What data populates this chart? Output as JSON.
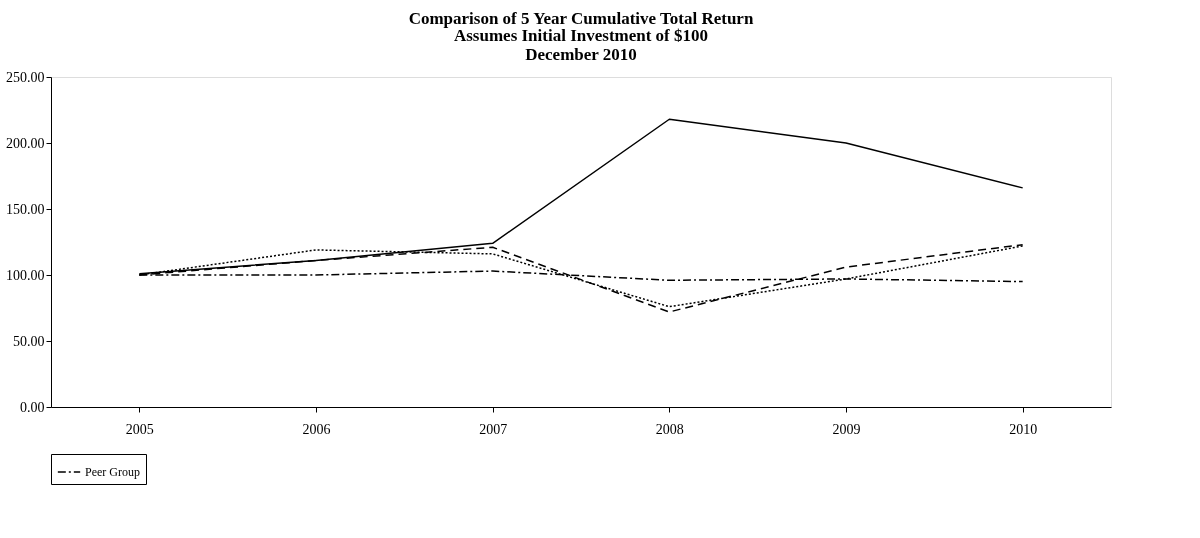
{
  "chart_data": {
    "type": "line",
    "title": "Comparison of 5 Year Cumulative Total Return",
    "subtitle": [
      "Assumes Initial Investment of $100",
      "December 2010"
    ],
    "categories": [
      "2005",
      "2006",
      "2007",
      "2008",
      "2009",
      "2010"
    ],
    "series": [
      {
        "color": "#000000",
        "line_style": "solid",
        "values": [
          101,
          111,
          124,
          218,
          200,
          166
        ]
      },
      {
        "color": "#000000",
        "line_style": "dashed",
        "values": [
          100,
          111,
          121,
          72,
          106,
          123
        ]
      },
      {
        "color": "#000000",
        "line_style": "dotted",
        "values": [
          100,
          119,
          116,
          76,
          97,
          122
        ]
      },
      {
        "name": "Peer Group",
        "color": "#000000",
        "line_style": "dashdot",
        "values": [
          100,
          100,
          103,
          96,
          97,
          95
        ]
      }
    ],
    "ylim": [
      0,
      250
    ],
    "yticks": [
      {
        "value": 0,
        "label": "0.00"
      },
      {
        "value": 50,
        "label": "50.00"
      },
      {
        "value": 100,
        "label": "100.00"
      },
      {
        "value": 150,
        "label": "150.00"
      },
      {
        "value": 200,
        "label": "200.00"
      },
      {
        "value": 250,
        "label": "250.00"
      }
    ],
    "grid": false,
    "legend": "bottom",
    "marker": "none"
  }
}
